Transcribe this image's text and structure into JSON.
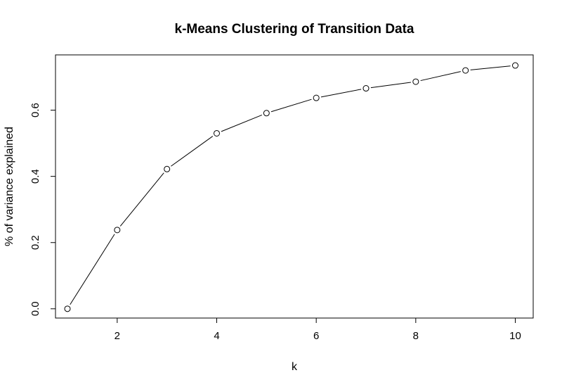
{
  "chart_data": {
    "type": "line",
    "title": "k-Means Clustering of Transition Data",
    "xlabel": "k",
    "ylabel": "% of variance explained",
    "x": [
      1,
      2,
      3,
      4,
      5,
      6,
      7,
      8,
      9,
      10
    ],
    "series": [
      {
        "values": [
          0.0,
          0.238,
          0.422,
          0.53,
          0.591,
          0.637,
          0.666,
          0.686,
          0.72,
          0.735
        ]
      }
    ],
    "xlim": [
      0.76,
      10.36
    ],
    "ylim": [
      -0.028,
      0.767
    ],
    "xticks": [
      2,
      4,
      6,
      8,
      10
    ],
    "xtick_labels": [
      "2",
      "4",
      "6",
      "8",
      "10"
    ],
    "yticks": [
      0.0,
      0.2,
      0.4,
      0.6
    ],
    "ytick_labels": [
      "0.0",
      "0.2",
      "0.4",
      "0.6"
    ],
    "grid": false,
    "marker": "open-circle",
    "line_color": "#000000",
    "background": "#ffffff"
  }
}
